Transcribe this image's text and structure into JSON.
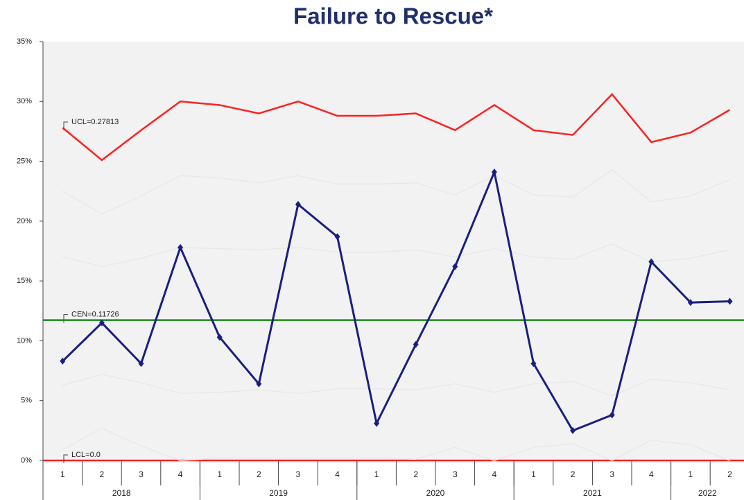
{
  "chart_data": {
    "type": "control",
    "title": "Failure to Rescue*",
    "categories": [
      "1",
      "2",
      "3",
      "4",
      "1",
      "2",
      "3",
      "4",
      "1",
      "2",
      "3",
      "4",
      "1",
      "2",
      "3",
      "4",
      "1",
      "2"
    ],
    "year_groups": [
      {
        "label": "2018",
        "span": 4
      },
      {
        "label": "2019",
        "span": 4
      },
      {
        "label": "2020",
        "span": 4
      },
      {
        "label": "2021",
        "span": 4
      },
      {
        "label": "2022",
        "span": 2
      }
    ],
    "series": [
      {
        "color": "#e8e8e8",
        "values": [
          22.5,
          20.6,
          22.1,
          23.8,
          23.6,
          23.2,
          23.8,
          23.1,
          23.1,
          23.2,
          22.2,
          23.8,
          22.2,
          22.0,
          24.3,
          21.6,
          22.1,
          23.5
        ]
      },
      {
        "color": "#e8e8e8",
        "values": [
          17.0,
          16.2,
          16.9,
          17.8,
          17.7,
          17.6,
          17.8,
          17.4,
          17.4,
          17.6,
          17.0,
          17.7,
          17.0,
          16.8,
          18.1,
          16.6,
          16.9,
          17.6
        ]
      },
      {
        "color": "#e8e8e8",
        "values": [
          6.3,
          7.2,
          6.5,
          5.6,
          5.7,
          5.9,
          5.6,
          6.0,
          6.0,
          5.9,
          6.4,
          5.7,
          6.4,
          6.6,
          5.4,
          6.8,
          6.5,
          5.9
        ]
      },
      {
        "color": "#e8e8e8",
        "values": [
          0.9,
          2.7,
          1.2,
          0,
          0.2,
          0.2,
          0.2,
          0.2,
          0.2,
          0.1,
          1.1,
          0,
          1.1,
          1.4,
          0,
          1.7,
          1.3,
          0
        ]
      },
      {
        "color": "#ff2020",
        "values": [
          27.8,
          25.1,
          27.6,
          30.0,
          29.7,
          29.0,
          30.0,
          28.8,
          28.8,
          29.0,
          27.6,
          29.7,
          27.6,
          27.2,
          30.6,
          26.6,
          27.4,
          29.3
        ]
      },
      {
        "color": "#1a1f80",
        "markers": true,
        "values": [
          8.3,
          11.5,
          8.1,
          17.8,
          10.3,
          6.4,
          21.4,
          18.7,
          3.1,
          9.7,
          16.2,
          24.1,
          8.1,
          2.5,
          3.8,
          16.6,
          13.2,
          13.3
        ]
      }
    ],
    "limits": [
      {
        "label": "UCL=0.27813",
        "value": 27.813,
        "line": false
      },
      {
        "label": "CEN=0.11726",
        "value": 11.726,
        "line": true,
        "color": "#1a8a1a"
      },
      {
        "label": "LCL=0.0",
        "value": 0,
        "line": true,
        "color": "#ff2020"
      }
    ],
    "ylim": [
      0,
      35
    ],
    "yticks": [
      {
        "value": 0,
        "label": "0%"
      },
      {
        "value": 5,
        "label": "5%"
      },
      {
        "value": 10,
        "label": "10%"
      },
      {
        "value": 15,
        "label": "15%"
      },
      {
        "value": 20,
        "label": "20%"
      },
      {
        "value": 25,
        "label": "25%"
      },
      {
        "value": 30,
        "label": "30%"
      },
      {
        "value": 35,
        "label": "35%"
      }
    ]
  }
}
